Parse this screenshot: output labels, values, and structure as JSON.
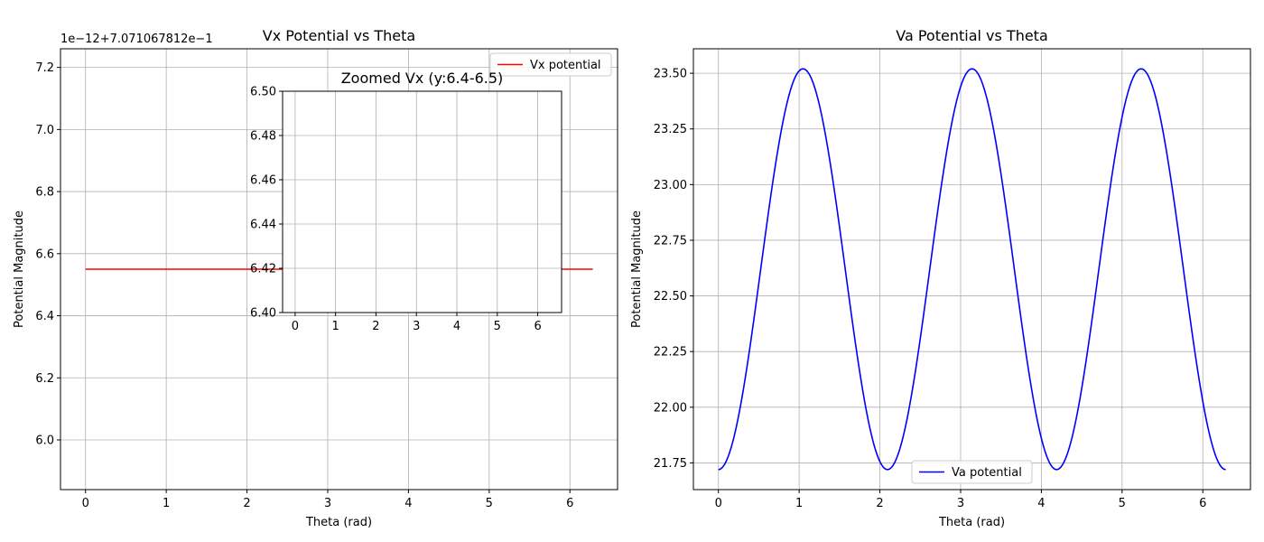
{
  "chart_data": [
    {
      "id": "left",
      "type": "line",
      "title": "Vx Potential vs Theta",
      "xlabel": "Theta (rad)",
      "ylabel": "Potential Magnitude",
      "offset_text": "1e−12+7.071067812e−1",
      "xlim": [
        -0.31,
        6.59
      ],
      "ylim": [
        5.84,
        7.26
      ],
      "xticks": [
        0,
        1,
        2,
        3,
        4,
        5,
        6
      ],
      "yticks": [
        6.0,
        6.2,
        6.4,
        6.6,
        6.8,
        7.0,
        7.2
      ],
      "ytick_labels": [
        "6.0",
        "6.2",
        "6.4",
        "6.6",
        "6.8",
        "7.0",
        "7.2"
      ],
      "grid": true,
      "legend_position": "top-right",
      "series": [
        {
          "name": "Vx potential",
          "color": "#ff0000",
          "x": [
            0,
            6.2832
          ],
          "y": [
            6.55,
            6.55
          ]
        }
      ]
    },
    {
      "id": "inset",
      "type": "line",
      "title": "Zoomed Vx (y:6.4-6.5)",
      "xlim": [
        -0.31,
        6.59
      ],
      "ylim": [
        6.4,
        6.5
      ],
      "xticks": [
        0,
        1,
        2,
        3,
        4,
        5,
        6
      ],
      "yticks": [
        6.4,
        6.42,
        6.44,
        6.46,
        6.48,
        6.5
      ],
      "ytick_labels": [
        "6.40",
        "6.42",
        "6.44",
        "6.46",
        "6.48",
        "6.50"
      ],
      "grid": true,
      "series": []
    },
    {
      "id": "right",
      "type": "line",
      "title": "Va Potential vs Theta",
      "xlabel": "Theta (rad)",
      "ylabel": "Potential Magnitude",
      "xlim": [
        -0.31,
        6.59
      ],
      "ylim": [
        21.63,
        23.61
      ],
      "xticks": [
        0,
        1,
        2,
        3,
        4,
        5,
        6
      ],
      "yticks": [
        21.75,
        22.0,
        22.25,
        22.5,
        22.75,
        23.0,
        23.25,
        23.5
      ],
      "ytick_labels": [
        "21.75",
        "22.00",
        "22.25",
        "22.50",
        "22.75",
        "23.00",
        "23.25",
        "23.50"
      ],
      "grid": true,
      "legend_position": "lower-center",
      "series": [
        {
          "name": "Va potential",
          "color": "#0000ff",
          "function": "cosine",
          "x_range": [
            0,
            6.2832
          ],
          "mean": 22.62,
          "amplitude": 0.9,
          "period": 2.0944,
          "phase_at_zero": "minimum"
        }
      ]
    }
  ]
}
